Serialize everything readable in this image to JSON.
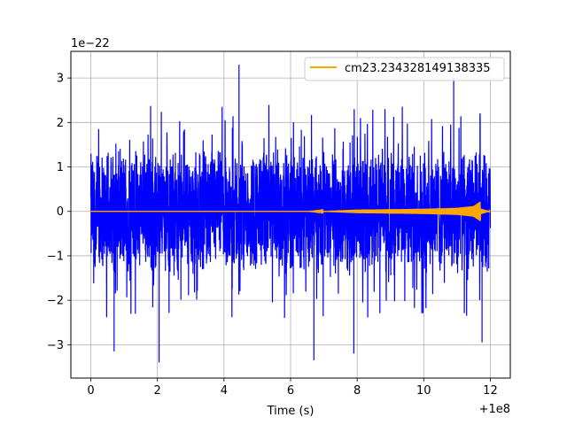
{
  "chart_data": {
    "type": "line",
    "title": "",
    "xlabel": "Time (s)",
    "ylabel": "",
    "x_offset_label": "+1e8",
    "y_scale_label": "1e−22",
    "xlim": [
      -0.6,
      12.6
    ],
    "ylim": [
      -3.75,
      3.6
    ],
    "x_ticks": [
      {
        "value": 0,
        "label": "0"
      },
      {
        "value": 2,
        "label": "2"
      },
      {
        "value": 4,
        "label": "4"
      },
      {
        "value": 6,
        "label": "6"
      },
      {
        "value": 8,
        "label": "8"
      },
      {
        "value": 10,
        "label": "10"
      },
      {
        "value": 12,
        "label": "12"
      }
    ],
    "y_ticks": [
      {
        "value": 3,
        "label": "3"
      },
      {
        "value": 2,
        "label": "2"
      },
      {
        "value": 1,
        "label": "1"
      },
      {
        "value": 0,
        "label": "0"
      },
      {
        "value": -1,
        "label": "−1"
      },
      {
        "value": -2,
        "label": "−2"
      },
      {
        "value": -3,
        "label": "−3"
      }
    ],
    "grid": true,
    "legend": {
      "position": "top-right"
    },
    "series": [
      {
        "role": "noisy strain data",
        "color": "#0000ff",
        "x_range": [
          0,
          12
        ],
        "typical_amplitude": 1.5,
        "peak_values": [
          {
            "x": 0.7,
            "y": -3.15
          },
          {
            "x": 2.05,
            "y": -3.4
          },
          {
            "x": 4.45,
            "y": 3.3
          },
          {
            "x": 6.7,
            "y": -3.35
          },
          {
            "x": 7.9,
            "y": -3.2
          },
          {
            "x": 10.9,
            "y": 3.0
          },
          {
            "x": 11.75,
            "y": -2.95
          }
        ]
      },
      {
        "name": "cm23.234328149138335",
        "color": "#ffa500",
        "x_range": [
          0,
          12
        ],
        "merger_time": 11.7,
        "envelope": [
          {
            "x": 0,
            "y": 0.0
          },
          {
            "x": 6.5,
            "y": 0.0
          },
          {
            "x": 7.0,
            "y": 0.01
          },
          {
            "x": 8.0,
            "y": 0.04
          },
          {
            "x": 9.0,
            "y": 0.05
          },
          {
            "x": 10.0,
            "y": 0.06
          },
          {
            "x": 11.0,
            "y": 0.08
          },
          {
            "x": 11.5,
            "y": 0.12
          },
          {
            "x": 11.7,
            "y": 0.22
          },
          {
            "x": 12.0,
            "y": 0.0
          }
        ]
      }
    ]
  }
}
